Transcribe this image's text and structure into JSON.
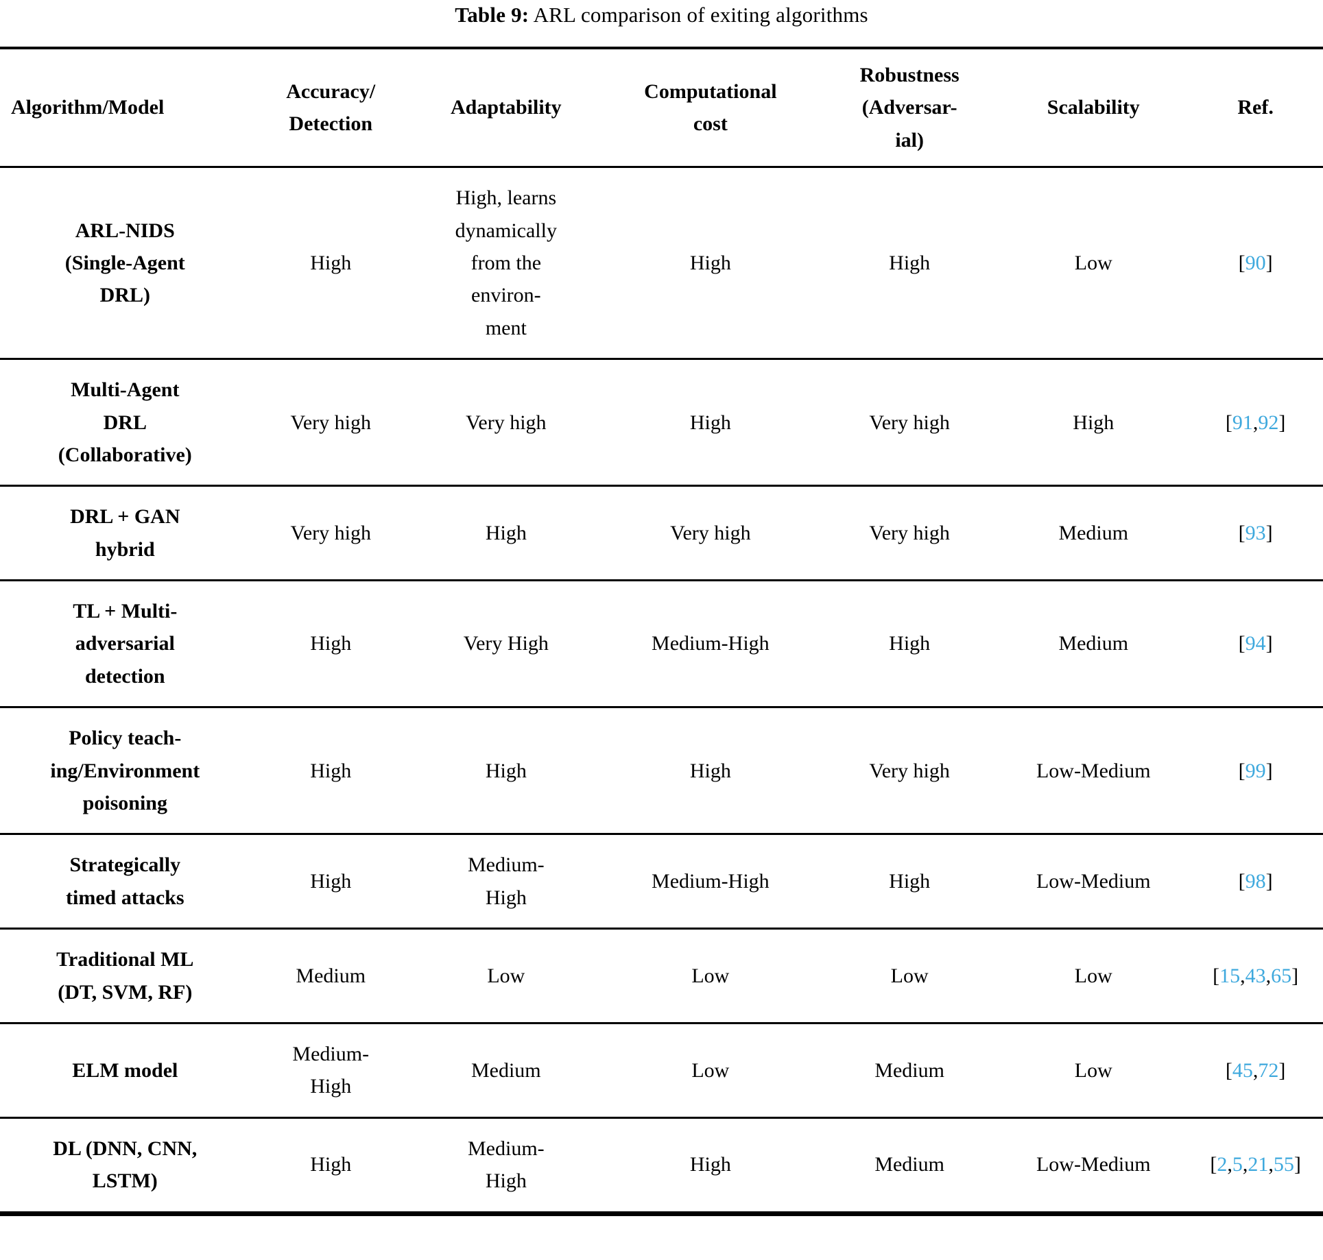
{
  "page": {
    "background": "#ffffff",
    "text_color": "#000000",
    "ref_color": "#3da8dd"
  },
  "caption": {
    "label": "Table 9:",
    "text": "ARL comparison of exiting algorithms"
  },
  "table": {
    "columns": [
      {
        "id": "model",
        "label": "Algorithm/Model"
      },
      {
        "id": "accuracy",
        "label": "Accuracy/\nDetection"
      },
      {
        "id": "adaptability",
        "label": "Adaptability"
      },
      {
        "id": "cost",
        "label": "Computational\ncost"
      },
      {
        "id": "robustness",
        "label": "Robustness\n(Adversar-\nial)"
      },
      {
        "id": "scalability",
        "label": "Scalability"
      },
      {
        "id": "ref",
        "label": "Ref."
      }
    ],
    "rows": [
      {
        "model": "ARL-NIDS\n(Single-Agent\nDRL)",
        "accuracy": "High",
        "adaptability": "High, learns\ndynamically\nfrom the\nenviron-\nment",
        "cost": "High",
        "robustness": "High",
        "scalability": "Low",
        "refs": [
          "90"
        ]
      },
      {
        "model": "Multi-Agent\nDRL\n(Collaborative)",
        "accuracy": "Very high",
        "adaptability": "Very high",
        "cost": "High",
        "robustness": "Very high",
        "scalability": "High",
        "refs": [
          "91",
          "92"
        ]
      },
      {
        "model": "DRL + GAN\nhybrid",
        "accuracy": "Very high",
        "adaptability": "High",
        "cost": "Very high",
        "robustness": "Very high",
        "scalability": "Medium",
        "refs": [
          "93"
        ]
      },
      {
        "model": "TL + Multi-\nadversarial\ndetection",
        "accuracy": "High",
        "adaptability": "Very High",
        "cost": "Medium-High",
        "robustness": "High",
        "scalability": "Medium",
        "refs": [
          "94"
        ]
      },
      {
        "model": "Policy teach-\ning/Environment\npoisoning",
        "accuracy": "High",
        "adaptability": "High",
        "cost": "High",
        "robustness": "Very high",
        "scalability": "Low-Medium",
        "refs": [
          "99"
        ]
      },
      {
        "model": "Strategically\ntimed attacks",
        "accuracy": "High",
        "adaptability": "Medium-\nHigh",
        "cost": "Medium-High",
        "robustness": "High",
        "scalability": "Low-Medium",
        "refs": [
          "98"
        ]
      },
      {
        "model": "Traditional ML\n(DT, SVM, RF)",
        "accuracy": "Medium",
        "adaptability": "Low",
        "cost": "Low",
        "robustness": "Low",
        "scalability": "Low",
        "refs": [
          "15",
          "43",
          "65"
        ]
      },
      {
        "model": "ELM model",
        "accuracy": "Medium-\nHigh",
        "adaptability": "Medium",
        "cost": "Low",
        "robustness": "Medium",
        "scalability": "Low",
        "refs": [
          "45",
          "72"
        ]
      },
      {
        "model": "DL (DNN, CNN,\nLSTM)",
        "accuracy": "High",
        "adaptability": "Medium-\nHigh",
        "cost": "High",
        "robustness": "Medium",
        "scalability": "Low-Medium",
        "refs": [
          "2",
          "5",
          "21",
          "55"
        ]
      }
    ]
  }
}
